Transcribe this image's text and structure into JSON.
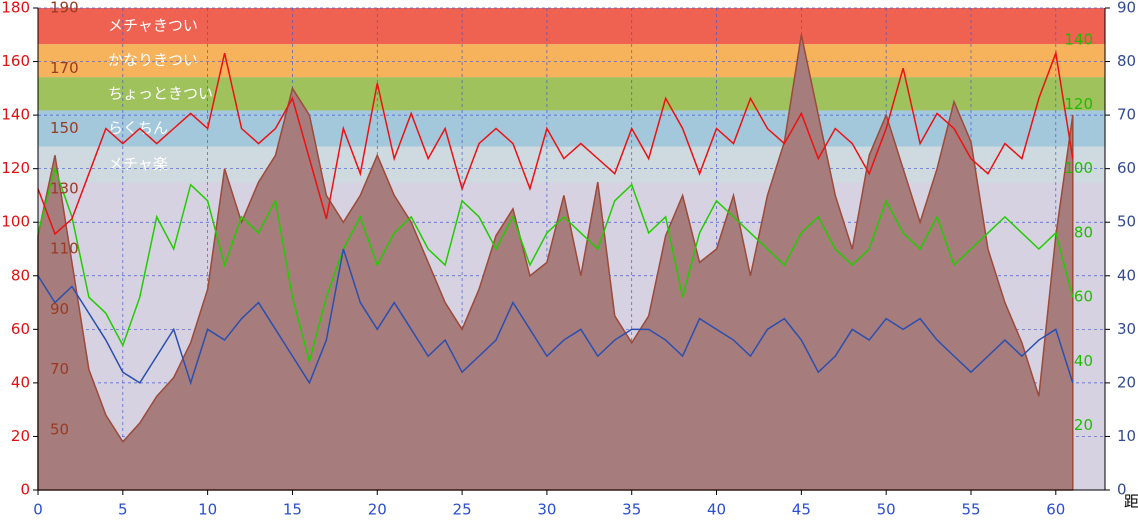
{
  "chart_data": {
    "type": "line",
    "x": [
      0,
      1,
      2,
      3,
      4,
      5,
      6,
      7,
      8,
      9,
      10,
      11,
      12,
      13,
      14,
      15,
      16,
      17,
      18,
      19,
      20,
      21,
      22,
      23,
      24,
      25,
      26,
      27,
      28,
      29,
      30,
      31,
      32,
      33,
      34,
      35,
      36,
      37,
      38,
      39,
      40,
      41,
      42,
      43,
      44,
      45,
      46,
      47,
      48,
      49,
      50,
      51,
      52,
      53,
      54,
      55,
      56,
      57,
      58,
      59,
      60,
      61
    ],
    "xlim": [
      0,
      62.9
    ],
    "xticks": [
      0,
      5,
      10,
      15,
      20,
      25,
      30,
      35,
      40,
      45,
      50,
      55,
      60
    ],
    "x_label": "距離",
    "ylim": [
      0,
      180
    ],
    "yticks": [
      0,
      20,
      40,
      60,
      80,
      100,
      120,
      140,
      160,
      180
    ],
    "hr_lim": [
      30,
      190
    ],
    "hr_ticks": [
      50,
      70,
      90,
      110,
      130,
      150,
      170,
      190
    ],
    "y3lim": [
      0,
      150
    ],
    "y3ticks": [
      20,
      40,
      60,
      80,
      100,
      120,
      140
    ],
    "y2lim": [
      0,
      90
    ],
    "y2ticks": [
      0,
      10,
      20,
      30,
      40,
      50,
      60,
      70,
      80,
      90
    ],
    "grid": true,
    "zones": [
      {
        "label": "メチャきつい",
        "range": [
          178,
          190
        ],
        "color": "#ef6150"
      },
      {
        "label": "かなりきつい",
        "range": [
          167,
          178
        ],
        "color": "#f7b25c"
      },
      {
        "label": "ちょっときつい",
        "range": [
          156,
          167
        ],
        "color": "#9fc25c"
      },
      {
        "label": "らくちん",
        "range": [
          144,
          156
        ],
        "color": "#a3c8dc"
      },
      {
        "label": "メチャ楽",
        "range": [
          132,
          144
        ],
        "color": "#cfd9e0"
      }
    ],
    "background": "#d6d2e2",
    "series": [
      {
        "axis": "y",
        "kind": "area",
        "color": "#9c4a3a",
        "fill": "#a77c7c",
        "values": [
          95,
          125,
          85,
          45,
          28,
          18,
          25,
          35,
          42,
          55,
          75,
          120,
          100,
          115,
          125,
          150,
          140,
          110,
          100,
          110,
          125,
          110,
          100,
          85,
          70,
          60,
          75,
          95,
          105,
          80,
          85,
          110,
          80,
          115,
          65,
          55,
          65,
          95,
          110,
          85,
          90,
          110,
          80,
          110,
          130,
          170,
          140,
          110,
          90,
          125,
          140,
          120,
          100,
          120,
          145,
          130,
          90,
          70,
          55,
          35,
          95,
          140
        ]
      },
      {
        "axis": "y3",
        "kind": "line",
        "color": "#22cc00",
        "values": [
          80,
          100,
          85,
          60,
          55,
          45,
          60,
          85,
          75,
          95,
          90,
          70,
          85,
          80,
          90,
          60,
          40,
          60,
          75,
          85,
          70,
          80,
          85,
          75,
          70,
          90,
          85,
          75,
          85,
          70,
          80,
          85,
          80,
          75,
          90,
          95,
          80,
          85,
          60,
          80,
          90,
          85,
          80,
          75,
          70,
          80,
          85,
          75,
          70,
          75,
          90,
          80,
          75,
          85,
          70,
          75,
          80,
          85,
          80,
          75,
          80,
          60
        ]
      },
      {
        "axis": "y2",
        "kind": "line",
        "color": "#2a4fb0",
        "values": [
          40,
          35,
          38,
          33,
          28,
          22,
          20,
          25,
          30,
          20,
          30,
          28,
          32,
          35,
          30,
          25,
          20,
          28,
          45,
          35,
          30,
          35,
          30,
          25,
          28,
          22,
          25,
          28,
          35,
          30,
          25,
          28,
          30,
          25,
          28,
          30,
          30,
          28,
          25,
          32,
          30,
          28,
          25,
          30,
          32,
          28,
          22,
          25,
          30,
          28,
          32,
          30,
          32,
          28,
          25,
          22,
          25,
          28,
          25,
          28,
          30,
          20
        ]
      },
      {
        "axis": "hr",
        "kind": "line",
        "color": "#ee1111",
        "values": [
          130,
          115,
          120,
          135,
          150,
          145,
          150,
          145,
          150,
          155,
          150,
          175,
          150,
          145,
          150,
          160,
          140,
          120,
          150,
          135,
          165,
          140,
          155,
          140,
          150,
          130,
          145,
          150,
          145,
          130,
          150,
          140,
          145,
          140,
          135,
          150,
          140,
          160,
          150,
          135,
          150,
          145,
          160,
          150,
          145,
          155,
          140,
          150,
          145,
          135,
          150,
          170,
          145,
          155,
          150,
          140,
          135,
          145,
          140,
          160,
          175,
          140
        ]
      }
    ]
  }
}
